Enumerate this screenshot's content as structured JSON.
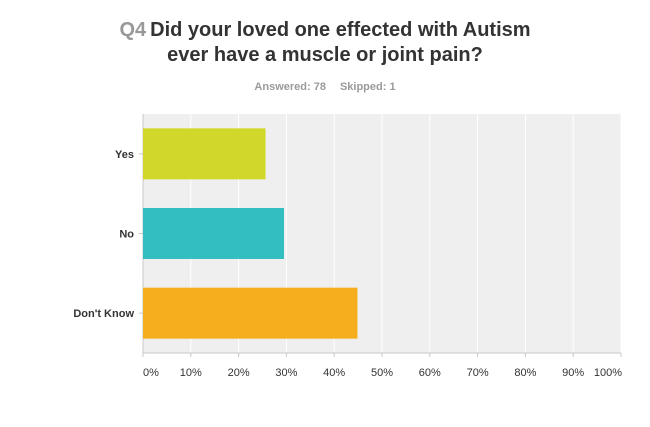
{
  "question": {
    "number": "Q4",
    "title_line1": "Did your loved one effected with Autism",
    "title_line2": "ever have a muscle or joint pain?"
  },
  "stats": {
    "answered": "Answered: 78",
    "skipped": "Skipped: 1"
  },
  "colors": {
    "plot_bg": "#efefef",
    "grid": "#ffffff",
    "axis": "#c8c8c8"
  },
  "chart_data": {
    "type": "bar",
    "orientation": "horizontal",
    "title": "Did your loved one effected with Autism ever have a muscle or joint pain?",
    "categories": [
      "Yes",
      "No",
      "Don't Know"
    ],
    "values": [
      25.64,
      29.49,
      44.87
    ],
    "colors": [
      "#d1d82a",
      "#33bfc1",
      "#f6ae1f"
    ],
    "xlim": [
      0,
      100
    ],
    "x_ticks": [
      "0%",
      "10%",
      "20%",
      "30%",
      "40%",
      "50%",
      "60%",
      "70%",
      "80%",
      "90%",
      "100%"
    ],
    "grid": true,
    "xlabel": "",
    "ylabel": ""
  }
}
